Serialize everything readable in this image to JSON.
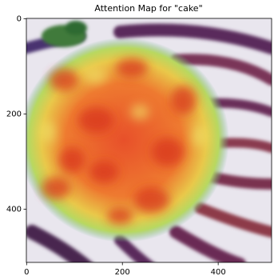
{
  "chart_data": {
    "type": "image",
    "title": "Attention Map for \"cake\"",
    "xlim": [
      -0.5,
      511.5
    ],
    "ylim": [
      511.5,
      -0.5
    ],
    "xticks": [
      0,
      200,
      400
    ],
    "yticks": [
      0,
      200,
      400
    ]
  }
}
